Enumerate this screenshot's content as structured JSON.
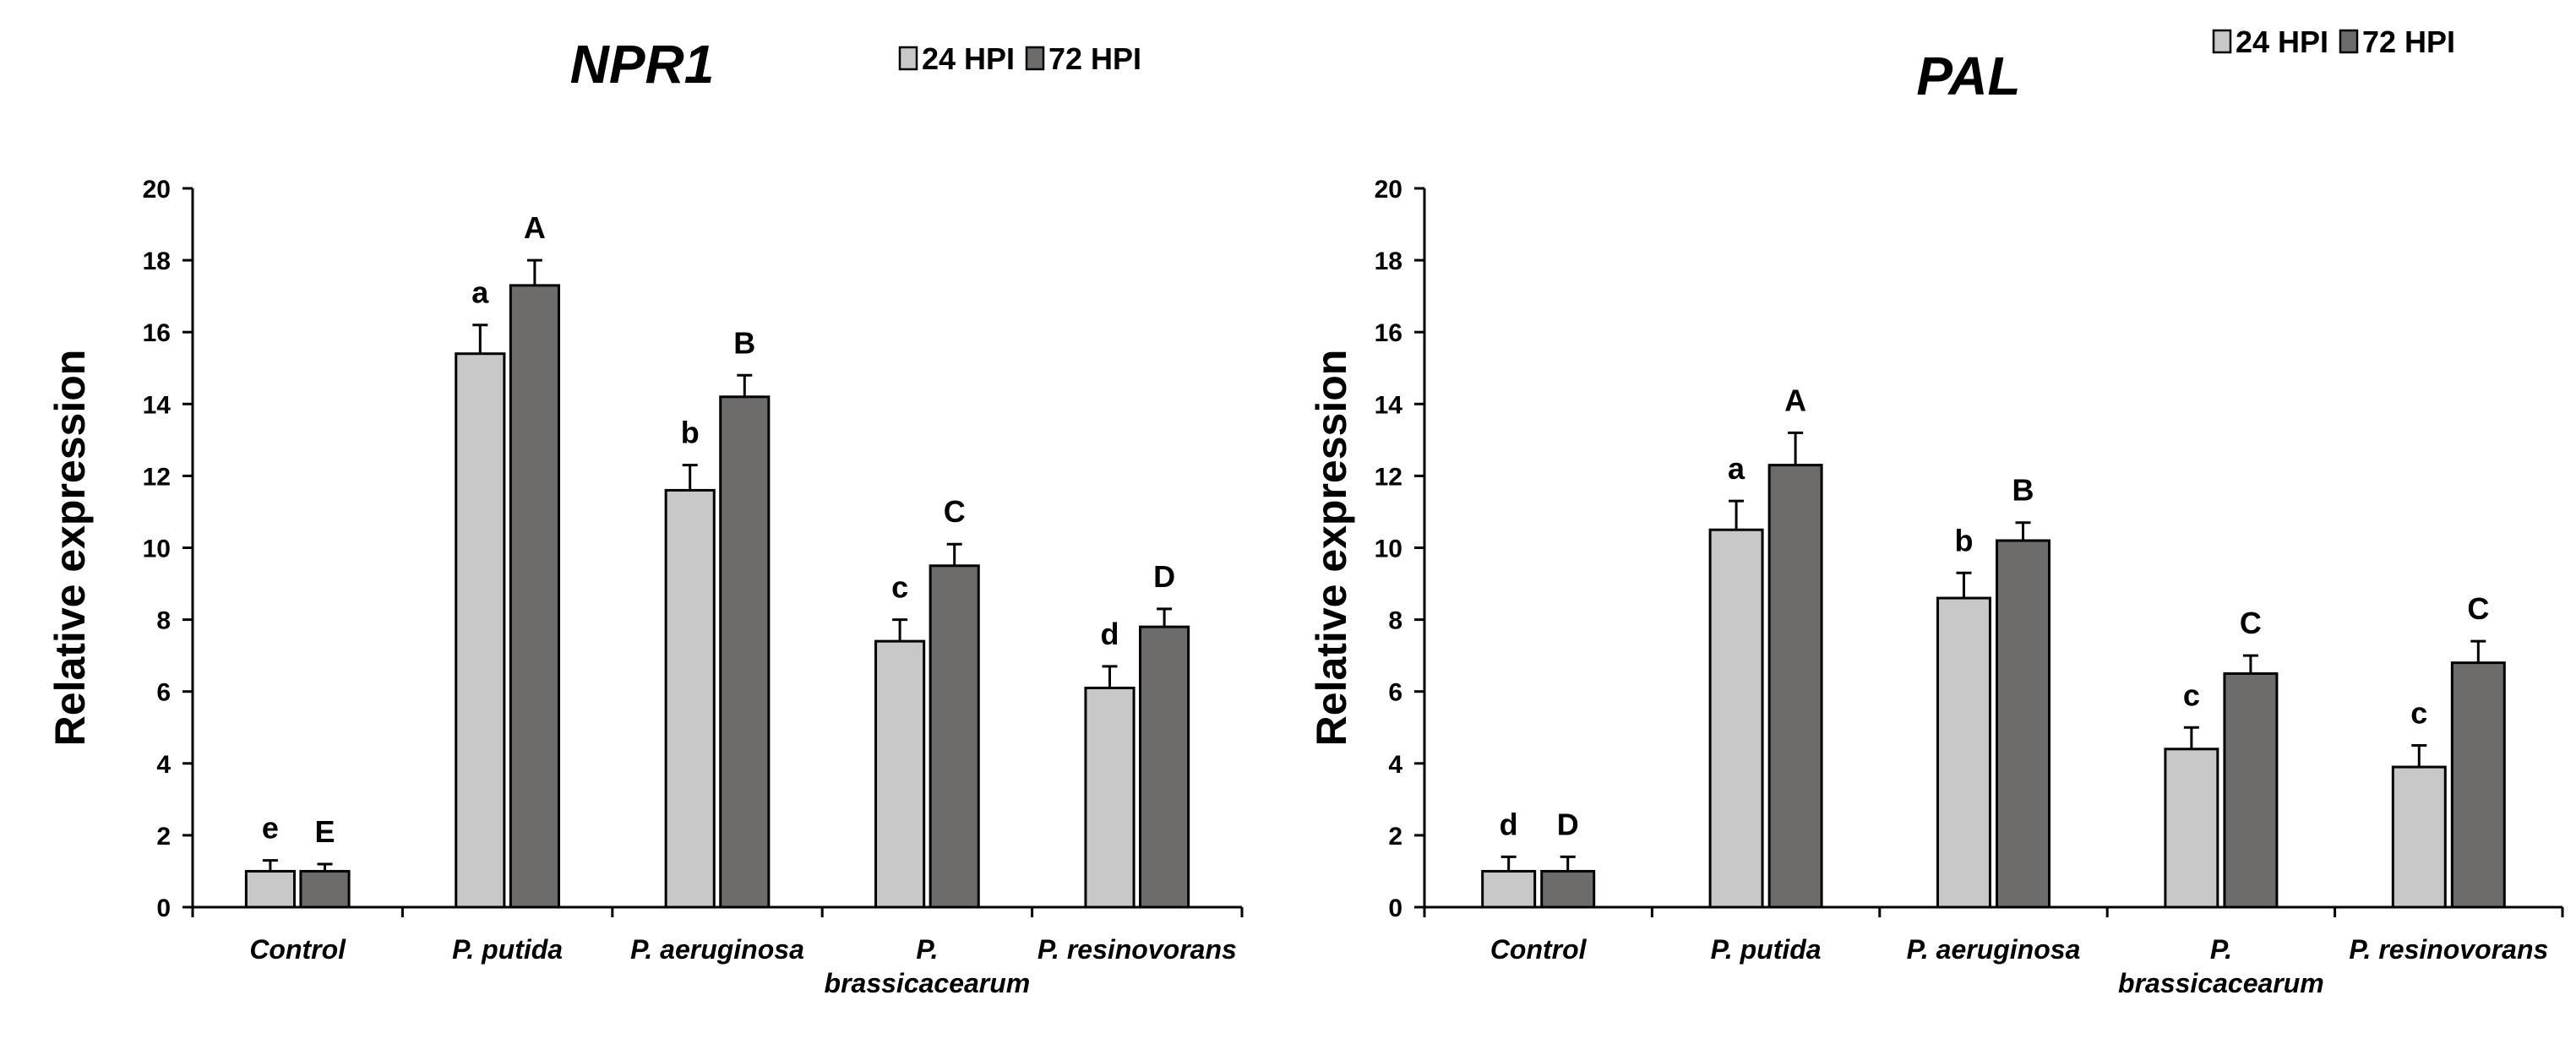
{
  "chart_data": [
    {
      "type": "bar",
      "title": "NPR1",
      "ylabel": "Relative expression",
      "xlabel": "",
      "ylim": [
        0,
        20
      ],
      "yticks": [
        0,
        2,
        4,
        6,
        8,
        10,
        12,
        14,
        16,
        18,
        20
      ],
      "categories": [
        [
          "Control"
        ],
        [
          "P. putida"
        ],
        [
          "P. aeruginosa"
        ],
        [
          "P.",
          "brassicacearum"
        ],
        [
          "P. resinovorans"
        ]
      ],
      "legend": [
        "24 HPI",
        "72 HPI"
      ],
      "legend_position": "top-right",
      "series": [
        {
          "name": "24 HPI",
          "color": "#c8c8c8",
          "values": [
            1.0,
            15.4,
            11.6,
            7.4,
            6.1
          ],
          "errors": [
            0.3,
            0.8,
            0.7,
            0.6,
            0.6
          ],
          "labels": [
            "e",
            "a",
            "b",
            "c",
            "d"
          ]
        },
        {
          "name": "72 HPI",
          "color": "#6e6b6b",
          "values": [
            1.0,
            17.3,
            14.2,
            9.5,
            7.8
          ],
          "errors": [
            0.2,
            0.7,
            0.6,
            0.6,
            0.5
          ],
          "labels": [
            "E",
            "A",
            "B",
            "C",
            "D"
          ]
        }
      ]
    },
    {
      "type": "bar",
      "title": "PAL",
      "ylabel": "Relative expression",
      "xlabel": "",
      "ylim": [
        0,
        20
      ],
      "yticks": [
        0,
        2,
        4,
        6,
        8,
        10,
        12,
        14,
        16,
        18,
        20
      ],
      "categories": [
        [
          "Control"
        ],
        [
          "P. putida"
        ],
        [
          "P. aeruginosa"
        ],
        [
          "P.",
          "brassicacearum"
        ],
        [
          "P. resinovorans"
        ]
      ],
      "legend": [
        "24 HPI",
        "72 HPI"
      ],
      "legend_position": "top-right",
      "series": [
        {
          "name": "24 HPI",
          "color": "#c8c8c8",
          "values": [
            1.0,
            10.5,
            8.6,
            4.4,
            3.9
          ],
          "errors": [
            0.4,
            0.8,
            0.7,
            0.6,
            0.6
          ],
          "labels": [
            "d",
            "a",
            "b",
            "c",
            "c"
          ]
        },
        {
          "name": "72 HPI",
          "color": "#6e6b6b",
          "values": [
            1.0,
            12.3,
            10.2,
            6.5,
            6.8
          ],
          "errors": [
            0.4,
            0.9,
            0.5,
            0.5,
            0.6
          ],
          "labels": [
            "D",
            "A",
            "B",
            "C",
            "C"
          ]
        }
      ]
    }
  ]
}
